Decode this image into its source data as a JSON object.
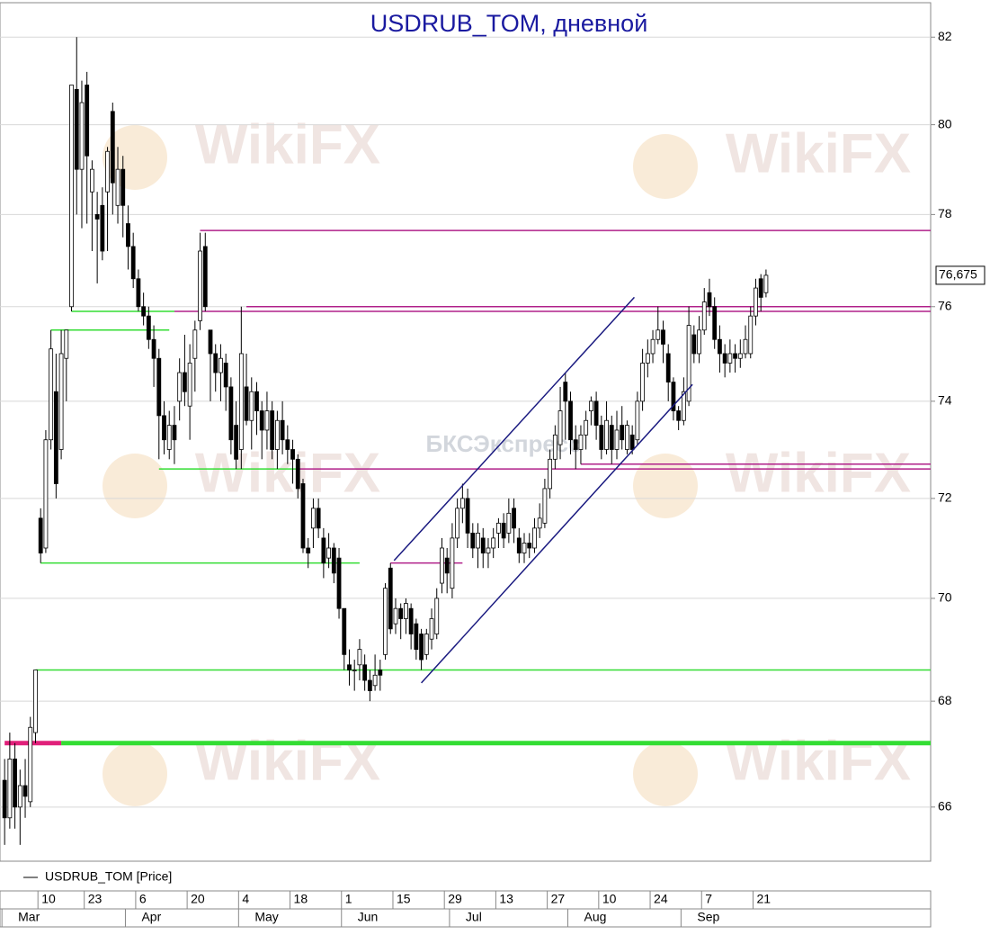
{
  "chart_data": {
    "type": "candlestick",
    "title": "USDRUB_TOM, дневной",
    "log": true,
    "grid": true,
    "ylim": [
      65.0,
      82.8
    ],
    "yticks": [
      66,
      68,
      70,
      72,
      74,
      76,
      78,
      80,
      82
    ],
    "xlim": [
      -0.9,
      180
    ],
    "xticks": [
      {
        "value": 7,
        "label": "10"
      },
      {
        "value": 16,
        "label": "23"
      },
      {
        "value": 26,
        "label": "6"
      },
      {
        "value": 36,
        "label": "20"
      },
      {
        "value": 46,
        "label": "4"
      },
      {
        "value": 56,
        "label": "18"
      },
      {
        "value": 66,
        "label": "1"
      },
      {
        "value": 76,
        "label": "15"
      },
      {
        "value": 86,
        "label": "29"
      },
      {
        "value": 96,
        "label": "13"
      },
      {
        "value": 106,
        "label": "27"
      },
      {
        "value": 116,
        "label": "10"
      },
      {
        "value": 126,
        "label": "24"
      },
      {
        "value": 136,
        "label": "7"
      },
      {
        "value": 146,
        "label": "21"
      }
    ],
    "months": [
      {
        "value": 0,
        "label": "Mar"
      },
      {
        "value": 24,
        "label": "Apr"
      },
      {
        "value": 46,
        "label": "May"
      },
      {
        "value": 66,
        "label": "Jun"
      },
      {
        "value": 87,
        "label": "Jul"
      },
      {
        "value": 110,
        "label": "Aug"
      },
      {
        "value": 132,
        "label": "Sep"
      }
    ],
    "up_color": "#ffffff",
    "down_color": "#000000",
    "series": {
      "name": "USDRUB_TOM [Price]",
      "open": [
        66.5,
        65.8,
        66.9,
        66.0,
        66.4,
        66.1,
        67.4,
        71.6,
        71.0,
        73.2,
        74.2,
        73.0,
        74.9,
        76.0,
        80.8,
        79.0,
        80.9,
        78.5,
        78.0,
        78.2,
        78.5,
        80.3,
        78.2,
        79.0,
        77.8,
        77.3,
        76.6,
        76.0,
        75.8,
        75.3,
        74.9,
        73.7,
        73.0,
        73.5,
        74.0,
        74.6,
        73.9,
        74.9,
        75.7,
        77.3,
        75.5,
        75.0,
        74.6,
        74.8,
        74.3,
        73.5,
        73.0,
        74.3,
        73.6,
        74.2,
        73.8,
        73.4,
        73.8,
        73.0,
        73.6,
        73.2,
        73.0,
        72.8,
        72.3,
        71.0,
        71.4,
        71.8,
        71.2,
        70.8,
        71.0,
        70.8,
        69.8,
        68.7,
        68.6,
        68.7,
        68.7,
        68.4,
        68.3,
        68.6,
        68.9,
        70.6,
        69.5,
        69.8,
        69.6,
        69.8,
        69.5,
        69.3,
        68.9,
        69.2,
        69.3,
        70.3,
        70.8,
        70.2,
        71.2,
        71.8,
        72.0,
        71.3,
        71.0,
        71.2,
        70.9,
        71.0,
        71.3,
        71.5,
        71.3,
        71.8,
        71.2,
        70.9,
        71.1,
        71.0,
        71.4,
        71.5,
        72.2,
        72.8,
        73.1,
        74.4,
        74.0,
        73.2,
        73.0,
        73.3,
        73.8,
        74.0,
        73.5,
        73.0,
        73.5,
        73.0,
        73.5,
        73.0,
        73.3,
        73.2,
        74.0,
        74.8,
        75.0,
        75.3,
        75.5,
        75.0,
        74.4,
        73.8,
        73.6,
        74.0,
        75.4,
        75.0,
        75.5,
        76.3,
        76.0,
        75.3,
        75.0,
        74.8,
        75.0,
        74.9,
        75.0,
        75.0,
        75.8,
        76.6,
        76.3
      ],
      "high": [
        66.9,
        67.4,
        67.2,
        66.7,
        66.9,
        67.7,
        68.6,
        71.8,
        73.4,
        75.5,
        75.0,
        75.5,
        75.5,
        80.9,
        82.0,
        81.0,
        81.2,
        79.2,
        78.5,
        78.6,
        79.5,
        80.5,
        79.5,
        79.3,
        78.2,
        77.6,
        76.8,
        76.3,
        76.0,
        75.6,
        75.1,
        74.0,
        73.8,
        73.9,
        74.9,
        75.4,
        75.2,
        75.7,
        77.6,
        77.6,
        75.5,
        75.2,
        75.2,
        75.0,
        74.5,
        74.0,
        76.0,
        75.0,
        74.5,
        74.4,
        74.0,
        74.2,
        74.0,
        73.8,
        74.0,
        73.5,
        73.2,
        72.9,
        72.4,
        71.2,
        72.0,
        72.0,
        71.4,
        71.3,
        71.1,
        71.0,
        69.8,
        69.0,
        68.8,
        69.2,
        68.9,
        68.6,
        68.9,
        68.8,
        70.3,
        70.7,
        70.0,
        69.9,
        70.0,
        69.9,
        69.6,
        69.4,
        69.4,
        69.8,
        70.2,
        71.2,
        71.0,
        71.5,
        72.0,
        72.3,
        72.2,
        71.5,
        71.5,
        71.4,
        71.2,
        71.4,
        71.6,
        71.7,
        72.0,
        72.0,
        71.4,
        71.3,
        71.3,
        71.6,
        71.9,
        72.4,
        73.0,
        73.5,
        74.3,
        74.6,
        74.2,
        73.5,
        73.5,
        73.8,
        74.1,
        74.2,
        73.7,
        74.0,
        73.7,
        73.8,
        73.9,
        73.6,
        73.5,
        74.2,
        75.1,
        75.3,
        75.5,
        76.0,
        75.7,
        75.2,
        74.5,
        73.9,
        74.5,
        76.0,
        75.6,
        75.8,
        76.4,
        76.6,
        76.2,
        75.6,
        75.2,
        75.3,
        75.2,
        75.3,
        75.6,
        76.0,
        76.6,
        76.7,
        76.8
      ],
      "low": [
        65.3,
        65.6,
        65.6,
        65.3,
        65.8,
        66.0,
        67.2,
        70.7,
        70.9,
        73.0,
        72.0,
        72.8,
        74.0,
        75.9,
        78.0,
        77.7,
        77.8,
        77.2,
        76.5,
        77.0,
        77.2,
        78.0,
        77.8,
        77.5,
        76.8,
        76.4,
        75.9,
        75.6,
        75.1,
        74.3,
        72.8,
        72.9,
        72.8,
        72.7,
        73.6,
        73.9,
        73.2,
        74.2,
        75.5,
        75.9,
        74.0,
        74.2,
        74.0,
        73.8,
        72.9,
        72.6,
        72.6,
        73.5,
        73.0,
        73.3,
        72.8,
        73.0,
        72.8,
        72.6,
        72.9,
        72.7,
        72.3,
        72.0,
        70.9,
        70.6,
        71.0,
        71.2,
        70.4,
        70.6,
        70.3,
        69.6,
        68.6,
        68.3,
        68.2,
        68.4,
        68.2,
        68.0,
        68.2,
        68.2,
        68.8,
        69.3,
        69.3,
        69.2,
        69.3,
        69.0,
        68.8,
        68.6,
        68.8,
        69.0,
        69.2,
        70.1,
        70.1,
        70.0,
        71.0,
        71.5,
        71.0,
        70.8,
        70.6,
        70.6,
        70.6,
        70.8,
        71.0,
        71.0,
        71.1,
        71.1,
        70.7,
        70.7,
        70.8,
        70.9,
        71.2,
        71.4,
        72.0,
        72.6,
        72.8,
        73.2,
        72.9,
        72.6,
        72.7,
        73.0,
        73.5,
        73.2,
        72.8,
        72.9,
        72.7,
        72.8,
        73.0,
        72.9,
        72.9,
        73.1,
        73.8,
        74.5,
        74.8,
        75.2,
        74.8,
        74.0,
        73.6,
        73.4,
        73.5,
        73.9,
        74.8,
        74.8,
        75.4,
        75.8,
        75.1,
        74.6,
        74.5,
        74.6,
        74.6,
        74.7,
        74.9,
        74.9,
        75.6,
        75.9,
        76.2
      ],
      "close": [
        65.8,
        66.9,
        66.0,
        66.4,
        66.2,
        67.5,
        68.6,
        70.9,
        73.2,
        75.1,
        72.3,
        75.0,
        75.5,
        80.9,
        79.0,
        80.5,
        79.3,
        79.0,
        77.9,
        77.2,
        79.4,
        78.7,
        79.0,
        78.2,
        77.3,
        76.6,
        76.0,
        75.8,
        75.3,
        74.9,
        73.7,
        73.2,
        73.5,
        73.2,
        74.6,
        74.2,
        74.8,
        75.5,
        77.2,
        76.0,
        75.0,
        74.6,
        74.9,
        74.3,
        73.2,
        72.8,
        75.0,
        73.6,
        74.2,
        73.8,
        73.4,
        73.8,
        73.0,
        73.6,
        73.2,
        73.0,
        72.8,
        72.2,
        71.0,
        70.9,
        71.8,
        71.4,
        70.7,
        71.0,
        70.5,
        69.8,
        68.9,
        68.6,
        68.6,
        69.0,
        68.4,
        68.2,
        68.5,
        68.5,
        70.2,
        69.4,
        69.8,
        69.6,
        69.9,
        69.3,
        69.0,
        68.8,
        69.3,
        69.6,
        70.0,
        71.0,
        70.5,
        71.2,
        71.8,
        72.0,
        71.3,
        71.0,
        71.3,
        70.9,
        71.0,
        71.2,
        71.5,
        71.2,
        71.7,
        71.4,
        70.9,
        71.1,
        71.0,
        71.4,
        71.6,
        72.2,
        72.8,
        73.3,
        73.8,
        74.0,
        73.2,
        73.0,
        73.3,
        73.6,
        74.0,
        73.5,
        73.0,
        73.6,
        73.0,
        73.4,
        73.2,
        73.5,
        73.0,
        74.0,
        74.8,
        75.0,
        75.3,
        75.5,
        75.2,
        74.4,
        73.8,
        73.6,
        74.2,
        75.6,
        75.0,
        75.5,
        76.1,
        76.0,
        75.3,
        75.0,
        74.8,
        75.0,
        74.9,
        75.0,
        75.3,
        75.8,
        76.4,
        76.2,
        76.675
      ]
    },
    "last_label": {
      "value": 76.675,
      "label": "76,675"
    },
    "levels": [
      {
        "value": 77.65,
        "from": 38,
        "to": 180,
        "color": "#b0208a",
        "width": 1.5
      },
      {
        "value": 76.0,
        "from": 47,
        "to": 180,
        "color": "#b0208a",
        "width": 1.5
      },
      {
        "value": 75.9,
        "from": 33,
        "to": 180,
        "color": "#b0208a",
        "width": 1.5
      },
      {
        "value": 75.9,
        "from": 13,
        "to": 33,
        "color": "#33dd33",
        "width": 1.5
      },
      {
        "value": 75.5,
        "from": 9,
        "to": 32,
        "color": "#33dd33",
        "width": 1.5
      },
      {
        "value": 72.7,
        "from": 112,
        "to": 180,
        "color": "#b0208a",
        "width": 1.5
      },
      {
        "value": 72.6,
        "from": 57,
        "to": 180,
        "color": "#b0208a",
        "width": 1.5
      },
      {
        "value": 72.6,
        "from": 30,
        "to": 57,
        "color": "#33dd33",
        "width": 1.5
      },
      {
        "value": 70.7,
        "from": 7,
        "to": 69,
        "color": "#33dd33",
        "width": 1.5
      },
      {
        "value": 70.7,
        "from": 75,
        "to": 89,
        "color": "#b0208a",
        "width": 1.5
      },
      {
        "value": 68.6,
        "from": 6,
        "to": 180,
        "color": "#33dd33",
        "width": 1.5
      },
      {
        "value": 67.2,
        "from": 0,
        "to": 11,
        "color": "#e0207a",
        "width": 5
      },
      {
        "value": 67.2,
        "from": 11,
        "to": 180,
        "color": "#33dd33",
        "width": 5
      }
    ],
    "channels": [
      {
        "x": [
          75.7,
          122.4
        ],
        "y": [
          70.75,
          76.2
        ],
        "color": "#1a1a80"
      },
      {
        "x": [
          81,
          133.7
        ],
        "y": [
          68.35,
          74.35
        ],
        "color": "#1a1a80"
      }
    ],
    "watermarks": [
      "WikiFX",
      "БКСЭкспресс"
    ]
  }
}
